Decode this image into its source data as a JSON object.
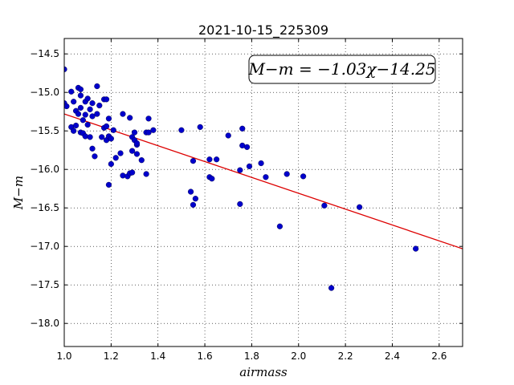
{
  "chart_data": {
    "type": "scatter",
    "title": "2021-10-15_225309",
    "xlabel": "airmass",
    "ylabel": "M−m",
    "xlim": [
      1.0,
      2.7
    ],
    "ylim": [
      -18.3,
      -14.3
    ],
    "y_inverted": true,
    "grid": true,
    "x_ticks": [
      1.0,
      1.2,
      1.4,
      1.6,
      1.8,
      2.0,
      2.2,
      2.4,
      2.6
    ],
    "x_tick_labels": [
      "1.0",
      "1.2",
      "1.4",
      "1.6",
      "1.8",
      "2.0",
      "2.2",
      "2.4",
      "2.6"
    ],
    "y_ticks": [
      -14.5,
      -15.0,
      -15.5,
      -16.0,
      -16.5,
      -17.0,
      -17.5,
      -18.0
    ],
    "y_tick_labels": [
      "−14.5",
      "−15.0",
      "−15.5",
      "−16.0",
      "−16.5",
      "−17.0",
      "−17.5",
      "−18.0"
    ],
    "annotation": "M−m = −1.03χ−14.25",
    "annotation_placement": "top-right",
    "fit_line": {
      "slope": -1.03,
      "intercept": -14.25,
      "color": "#dd0000"
    },
    "marker_color": "#0000cc",
    "points": [
      [
        1.0,
        -14.7
      ],
      [
        1.0,
        -15.14
      ],
      [
        1.01,
        -15.18
      ],
      [
        1.03,
        -14.99
      ],
      [
        1.03,
        -15.45
      ],
      [
        1.04,
        -15.12
      ],
      [
        1.04,
        -15.5
      ],
      [
        1.05,
        -15.43
      ],
      [
        1.05,
        -15.24
      ],
      [
        1.06,
        -14.94
      ],
      [
        1.07,
        -14.96
      ],
      [
        1.06,
        -15.28
      ],
      [
        1.07,
        -15.04
      ],
      [
        1.07,
        -15.2
      ],
      [
        1.07,
        -15.52
      ],
      [
        1.08,
        -15.36
      ],
      [
        1.08,
        -15.53
      ],
      [
        1.09,
        -15.12
      ],
      [
        1.09,
        -15.57
      ],
      [
        1.09,
        -15.29
      ],
      [
        1.1,
        -15.42
      ],
      [
        1.1,
        -15.08
      ],
      [
        1.11,
        -15.22
      ],
      [
        1.11,
        -15.58
      ],
      [
        1.12,
        -15.14
      ],
      [
        1.12,
        -15.31
      ],
      [
        1.12,
        -15.73
      ],
      [
        1.13,
        -15.83
      ],
      [
        1.14,
        -15.28
      ],
      [
        1.14,
        -14.92
      ],
      [
        1.15,
        -15.17
      ],
      [
        1.16,
        -15.58
      ],
      [
        1.17,
        -15.09
      ],
      [
        1.17,
        -15.46
      ],
      [
        1.18,
        -15.09
      ],
      [
        1.18,
        -15.44
      ],
      [
        1.18,
        -15.62
      ],
      [
        1.19,
        -15.57
      ],
      [
        1.19,
        -16.2
      ],
      [
        1.19,
        -15.34
      ],
      [
        1.2,
        -15.6
      ],
      [
        1.2,
        -15.93
      ],
      [
        1.21,
        -15.49
      ],
      [
        1.22,
        -15.85
      ],
      [
        1.24,
        -15.79
      ],
      [
        1.25,
        -15.28
      ],
      [
        1.25,
        -16.08
      ],
      [
        1.27,
        -16.09
      ],
      [
        1.28,
        -15.33
      ],
      [
        1.28,
        -16.05
      ],
      [
        1.29,
        -15.76
      ],
      [
        1.29,
        -16.04
      ],
      [
        1.29,
        -15.58
      ],
      [
        1.3,
        -15.52
      ],
      [
        1.3,
        -15.62
      ],
      [
        1.31,
        -15.68
      ],
      [
        1.31,
        -15.66
      ],
      [
        1.31,
        -15.8
      ],
      [
        1.33,
        -15.88
      ],
      [
        1.35,
        -15.52
      ],
      [
        1.35,
        -16.06
      ],
      [
        1.36,
        -15.52
      ],
      [
        1.36,
        -15.34
      ],
      [
        1.38,
        -15.49
      ],
      [
        1.5,
        -15.49
      ],
      [
        1.54,
        -16.29
      ],
      [
        1.55,
        -16.46
      ],
      [
        1.55,
        -15.89
      ],
      [
        1.56,
        -16.38
      ],
      [
        1.58,
        -15.45
      ],
      [
        1.62,
        -15.87
      ],
      [
        1.62,
        -16.1
      ],
      [
        1.63,
        -16.12
      ],
      [
        1.65,
        -15.87
      ],
      [
        1.7,
        -15.56
      ],
      [
        1.75,
        -16.01
      ],
      [
        1.75,
        -16.45
      ],
      [
        1.76,
        -15.47
      ],
      [
        1.76,
        -15.69
      ],
      [
        1.78,
        -15.71
      ],
      [
        1.79,
        -15.96
      ],
      [
        1.84,
        -15.92
      ],
      [
        1.86,
        -16.1
      ],
      [
        1.92,
        -16.74
      ],
      [
        1.95,
        -16.06
      ],
      [
        2.02,
        -16.09
      ],
      [
        2.11,
        -16.47
      ],
      [
        2.14,
        -17.54
      ],
      [
        2.26,
        -16.49
      ],
      [
        2.5,
        -17.03
      ]
    ]
  }
}
